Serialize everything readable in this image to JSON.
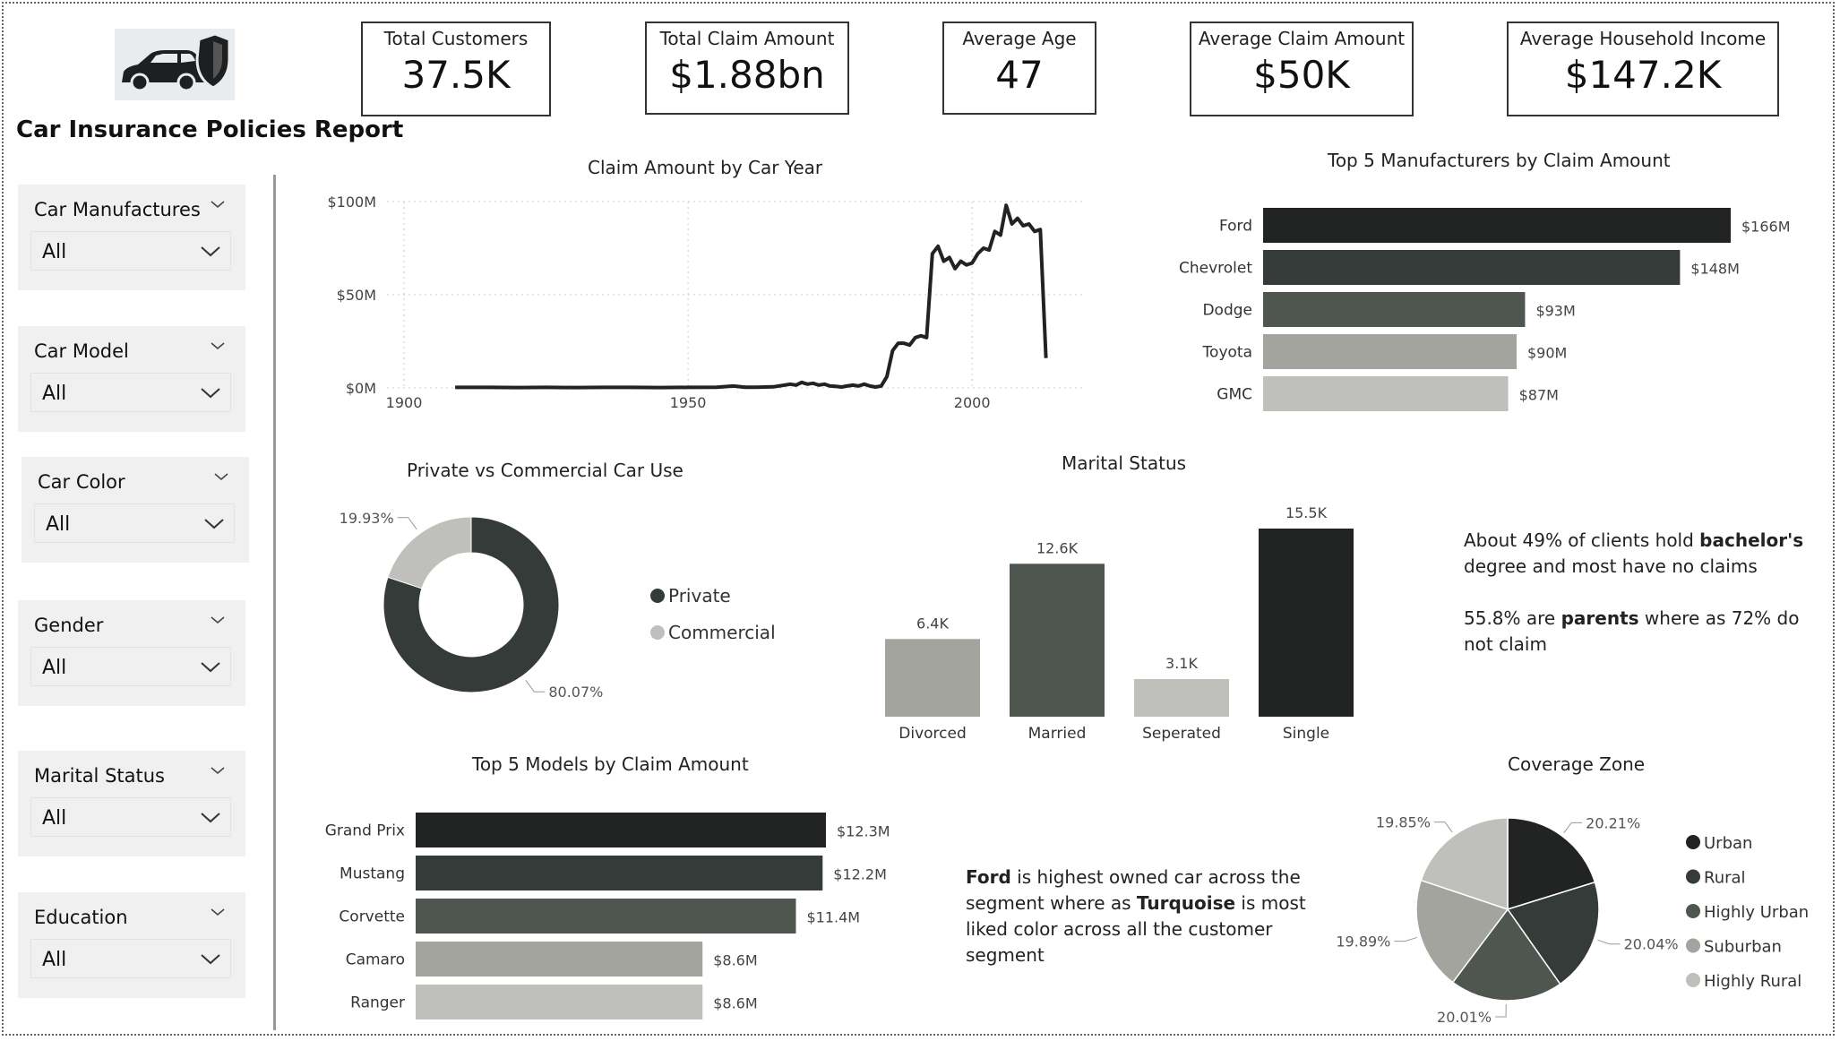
{
  "report": {
    "title": "Car Insurance Policies Report",
    "logo_icon": "car-shield-icon"
  },
  "kpis": [
    {
      "label": "Total Customers",
      "value": "37.5K"
    },
    {
      "label": "Total Claim Amount",
      "value": "$1.88bn"
    },
    {
      "label": "Average Age",
      "value": "47"
    },
    {
      "label": "Average Claim Amount",
      "value": "$50K"
    },
    {
      "label": "Average Household Income",
      "value": "$147.2K"
    }
  ],
  "slicers": [
    {
      "label": "Car Manufactures",
      "value": "All"
    },
    {
      "label": "Car Model",
      "value": "All"
    },
    {
      "label": "Car Color",
      "value": "All"
    },
    {
      "label": "Gender",
      "value": "All"
    },
    {
      "label": "Marital Status",
      "value": "All"
    },
    {
      "label": "Education",
      "value": "All"
    }
  ],
  "palette": [
    "#222423",
    "#343b38",
    "#4f5650",
    "#a3a49e",
    "#bfc0bb"
  ],
  "chart_data": [
    {
      "id": "claim_by_year",
      "type": "line",
      "title": "Claim Amount by Car Year",
      "x_ticks": [
        "1900",
        "1950",
        "2000"
      ],
      "y_ticks": [
        "$0M",
        "$50M",
        "$100M"
      ],
      "xlim": [
        1897,
        2020
      ],
      "ylim": [
        0,
        100
      ],
      "y_unit": "$M",
      "grid": true,
      "x": [
        1909,
        1915,
        1920,
        1925,
        1930,
        1935,
        1940,
        1945,
        1950,
        1955,
        1958,
        1960,
        1962,
        1965,
        1967,
        1968,
        1969,
        1970,
        1971,
        1972,
        1973,
        1974,
        1975,
        1976,
        1977,
        1978,
        1979,
        1980,
        1981,
        1982,
        1983,
        1984,
        1985,
        1986,
        1987,
        1988,
        1989,
        1990,
        1991,
        1992,
        1993,
        1994,
        1995,
        1996,
        1997,
        1998,
        1999,
        2000,
        2001,
        2002,
        2003,
        2004,
        2005,
        2006,
        2007,
        2008,
        2009,
        2010,
        2011,
        2012,
        2013
      ],
      "y": [
        0.3,
        0.3,
        0.2,
        0.3,
        0.2,
        0.3,
        0.3,
        0.2,
        0.3,
        0.4,
        1,
        0.4,
        0.4,
        0.6,
        1.5,
        2,
        1.5,
        3,
        2,
        2.5,
        1.5,
        2,
        1,
        0.8,
        0.5,
        1,
        1.5,
        1,
        2,
        1,
        0.5,
        1,
        6,
        20,
        24,
        24,
        23,
        27,
        28,
        27,
        72,
        76,
        68,
        70,
        64,
        68,
        66,
        67,
        72,
        75,
        74,
        84,
        82,
        98,
        88,
        91,
        87,
        88,
        84,
        85,
        16
      ]
    },
    {
      "id": "top_manufacturers",
      "type": "bar",
      "orientation": "horizontal",
      "title": "Top 5 Manufacturers by Claim Amount",
      "categories": [
        "Ford",
        "Chevrolet",
        "Dodge",
        "Toyota",
        "GMC"
      ],
      "values": [
        166,
        148,
        93,
        90,
        87
      ],
      "labels": [
        "$166M",
        "$148M",
        "$93M",
        "$90M",
        "$87M"
      ],
      "unit": "$M"
    },
    {
      "id": "car_use",
      "type": "pie",
      "title": "Private vs Commercial Car Use",
      "labels": [
        "Private",
        "Commercial"
      ],
      "values": [
        80.07,
        19.93
      ],
      "value_labels": [
        "80.07%",
        "19.93%"
      ],
      "donut": true,
      "legend": "right"
    },
    {
      "id": "marital_status",
      "type": "bar",
      "title": "Marital Status",
      "categories": [
        "Divorced",
        "Married",
        "Seperated",
        "Single"
      ],
      "values": [
        6.4,
        12.6,
        3.1,
        15.5
      ],
      "labels": [
        "6.4K",
        "12.6K",
        "3.1K",
        "15.5K"
      ],
      "unit": "K"
    },
    {
      "id": "top_models",
      "type": "bar",
      "orientation": "horizontal",
      "title": "Top 5 Models by Claim Amount",
      "categories": [
        "Grand Prix",
        "Mustang",
        "Corvette",
        "Camaro",
        "Ranger"
      ],
      "values": [
        12.3,
        12.2,
        11.4,
        8.6,
        8.6
      ],
      "labels": [
        "$12.3M",
        "$12.2M",
        "$11.4M",
        "$8.6M",
        "$8.6M"
      ],
      "unit": "$M"
    },
    {
      "id": "coverage_zone",
      "type": "pie",
      "title": "Coverage Zone",
      "labels": [
        "Urban",
        "Rural",
        "Highly Urban",
        "Suburban",
        "Highly Rural"
      ],
      "values": [
        20.21,
        20.04,
        20.01,
        19.89,
        19.85
      ],
      "value_labels": [
        "20.21%",
        "20.04%",
        "20.01%",
        "19.89%",
        "19.85%"
      ],
      "legend": "right"
    }
  ],
  "notes": {
    "education": {
      "p1": "About 49% of clients hold ",
      "b1": "bachelor's",
      "p2": " degree and most have no claims"
    },
    "parents": {
      "p1": "55.8% are ",
      "b1": "parents",
      "p2": " where as 72% do not claim"
    },
    "ford": {
      "b1": "Ford",
      "p1": " is highest owned car across the segment where as ",
      "b2": "Turquoise",
      "p2": " is most liked color across all the customer segment"
    }
  }
}
